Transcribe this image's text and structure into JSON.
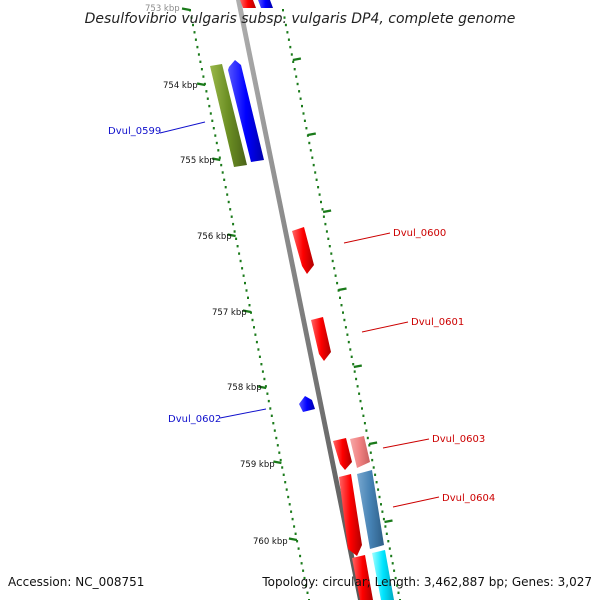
{
  "title": "Desulfovibrio vulgaris subsp. vulgaris DP4, complete genome",
  "footer": {
    "accession": "Accession: NC_008751",
    "topology": "Topology: circular; Length: 3,462,887 bp; Genes: 3,027"
  },
  "kbp_labels": [
    "753 kbp",
    "754 kbp",
    "755 kbp",
    "756 kbp",
    "757 kbp",
    "758 kbp",
    "759 kbp",
    "760 kbp"
  ],
  "genes": [
    {
      "name": "Dvul_0599",
      "strand": "minus",
      "color": "#1010cc"
    },
    {
      "name": "Dvul_0600",
      "strand": "plus",
      "color": "#cc0000"
    },
    {
      "name": "Dvul_0601",
      "strand": "plus",
      "color": "#cc0000"
    },
    {
      "name": "Dvul_0602",
      "strand": "minus",
      "color": "#1010cc"
    },
    {
      "name": "Dvul_0603",
      "strand": "plus",
      "color": "#cc0000"
    },
    {
      "name": "Dvul_0604",
      "strand": "plus",
      "color": "#cc0000"
    }
  ],
  "colors": {
    "backbone": "#808080",
    "plus_cds": "#ff0000",
    "minus_cds": "#0000ff",
    "operon": "#6b8e23",
    "tick": "#1a7a1a",
    "pink_feature": "#f08080",
    "steelblue_feature": "#4682b4",
    "cyan_feature": "#00e5ff"
  }
}
